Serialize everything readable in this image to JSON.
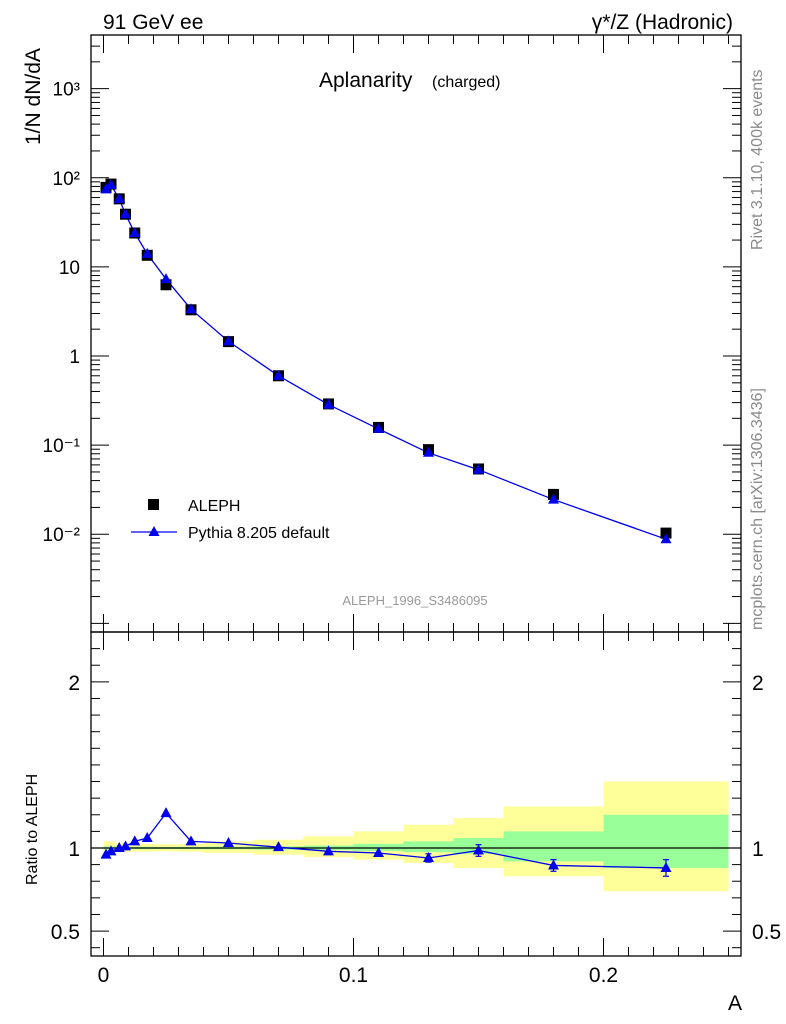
{
  "header": {
    "left": "91 GeV ee",
    "right": "γ*/Z (Hadronic)"
  },
  "side_labels": {
    "top": "Rivet 3.1.10,  400k events",
    "bottom": "mcplots.cern.ch [arXiv:1306.3436]"
  },
  "chart_data": {
    "type": "scatter",
    "title": "Aplanarity",
    "title_suffix": "(charged)",
    "analysis_id": "ALEPH_1996_S3486095",
    "xlabel": "A",
    "ylabel": "1/N dN/dA",
    "ratio_ylabel": "Ratio to ALEPH",
    "xlim": [
      -0.005,
      0.255
    ],
    "ylim": [
      0.0008,
      4000
    ],
    "yscale": "log",
    "ratio_ylim": [
      0.35,
      2.3
    ],
    "x_ticks": [
      "0",
      "0.1",
      "0.2"
    ],
    "y_ticks": [
      "10⁻²",
      "10⁻¹",
      "1",
      "10",
      "10²",
      "10³"
    ],
    "ratio_ticks": [
      "0.5",
      "1",
      "2"
    ],
    "legend": [
      {
        "label": "ALEPH",
        "marker": "square",
        "color": "#000000"
      },
      {
        "label": "Pythia 8.205 default",
        "marker": "triangle",
        "color": "#0000ee"
      }
    ],
    "x": [
      0.001,
      0.003,
      0.0063,
      0.0088,
      0.0125,
      0.0175,
      0.025,
      0.035,
      0.05,
      0.07,
      0.09,
      0.11,
      0.13,
      0.15,
      0.18,
      0.225
    ],
    "series": [
      {
        "name": "ALEPH",
        "values": [
          78,
          85,
          58,
          39,
          24,
          13.5,
          6.3,
          3.3,
          1.45,
          0.6,
          0.29,
          0.158,
          0.089,
          0.054,
          0.028,
          0.0103
        ]
      },
      {
        "name": "Pythia 8.205 default",
        "values": [
          74,
          83,
          58,
          39,
          24,
          14,
          7.3,
          3.35,
          1.46,
          0.6,
          0.285,
          0.152,
          0.082,
          0.053,
          0.0245,
          0.0088
        ]
      }
    ],
    "ratio": [
      0.96,
      0.98,
      1.0,
      1.01,
      1.04,
      1.06,
      1.21,
      1.04,
      1.03,
      1.005,
      0.98,
      0.97,
      0.94,
      0.985,
      0.895,
      0.88
    ],
    "ratio_err": [
      0,
      0,
      0,
      0,
      0,
      0,
      0,
      0,
      0,
      0,
      0,
      0,
      0.025,
      0.035,
      0.035,
      0.05
    ],
    "bands": {
      "edges": [
        0,
        0.005,
        0.01,
        0.02,
        0.03,
        0.04,
        0.06,
        0.08,
        0.1,
        0.12,
        0.14,
        0.16,
        0.2,
        0.25
      ],
      "stat_lo": [
        0.99,
        0.992,
        0.993,
        0.994,
        0.993,
        0.992,
        0.99,
        0.987,
        0.982,
        0.975,
        0.965,
        0.92,
        0.88
      ],
      "stat_hi": [
        1.01,
        1.008,
        1.007,
        1.006,
        1.007,
        1.008,
        1.01,
        1.015,
        1.025,
        1.04,
        1.06,
        1.1,
        1.2
      ],
      "total_lo": [
        0.97,
        0.975,
        0.978,
        0.98,
        0.978,
        0.97,
        0.96,
        0.945,
        0.93,
        0.91,
        0.88,
        0.83,
        0.74
      ],
      "total_hi": [
        1.04,
        1.03,
        1.025,
        1.022,
        1.025,
        1.04,
        1.05,
        1.07,
        1.1,
        1.14,
        1.18,
        1.25,
        1.4
      ]
    }
  }
}
